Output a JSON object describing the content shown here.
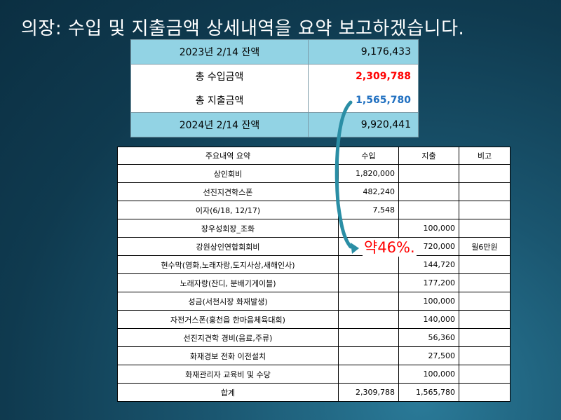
{
  "title": "의장: 수입 및 지출금액 상세내역을 요약 보고하겠습니다.",
  "summary": {
    "rows": [
      {
        "label": "2023년 2/14 잔액",
        "value": "9,176,433"
      },
      {
        "label": "총 수입금액",
        "value": "2,309,788"
      },
      {
        "label": "총 지출금액",
        "value": "1,565,780"
      },
      {
        "label": "2024년 2/14 잔액",
        "value": "9,920,441"
      }
    ]
  },
  "annotation": {
    "percent": "약46%."
  },
  "detail": {
    "headers": [
      "주요내역 요약",
      "수입",
      "지출",
      "비고"
    ],
    "rows": [
      {
        "item": "상인회비",
        "income": "1,820,000",
        "expense": "",
        "note": ""
      },
      {
        "item": "선진지견학스폰",
        "income": "482,240",
        "expense": "",
        "note": ""
      },
      {
        "item": "이자(6/18, 12/17)",
        "income": "7,548",
        "expense": "",
        "note": ""
      },
      {
        "item": "장우성회장_조화",
        "income": "",
        "expense": "100,000",
        "note": ""
      },
      {
        "item": "강원상인연합회회비",
        "income": "",
        "expense": "720,000",
        "note": "월6만원"
      },
      {
        "item": "현수막(영화,노래자랑,도지사상,새해인사)",
        "income": "",
        "expense": "144,720",
        "note": ""
      },
      {
        "item": "노래자랑(잔디, 분배기게이블)",
        "income": "",
        "expense": "177,200",
        "note": ""
      },
      {
        "item": "성금(서천시장 화재발생)",
        "income": "",
        "expense": "100,000",
        "note": ""
      },
      {
        "item": "자전거스폰(홍천읍 한마음체육대회)",
        "income": "",
        "expense": "140,000",
        "note": ""
      },
      {
        "item": "선진지견학 경비(음료,주류)",
        "income": "",
        "expense": "56,360",
        "note": ""
      },
      {
        "item": "화재경보 전화 이전설치",
        "income": "",
        "expense": "27,500",
        "note": ""
      },
      {
        "item": "화재관리자 교육비 및 수당",
        "income": "",
        "expense": "100,000",
        "note": ""
      }
    ],
    "total": {
      "item": "합계",
      "income": "2,309,788",
      "expense": "1,565,780",
      "note": ""
    }
  }
}
